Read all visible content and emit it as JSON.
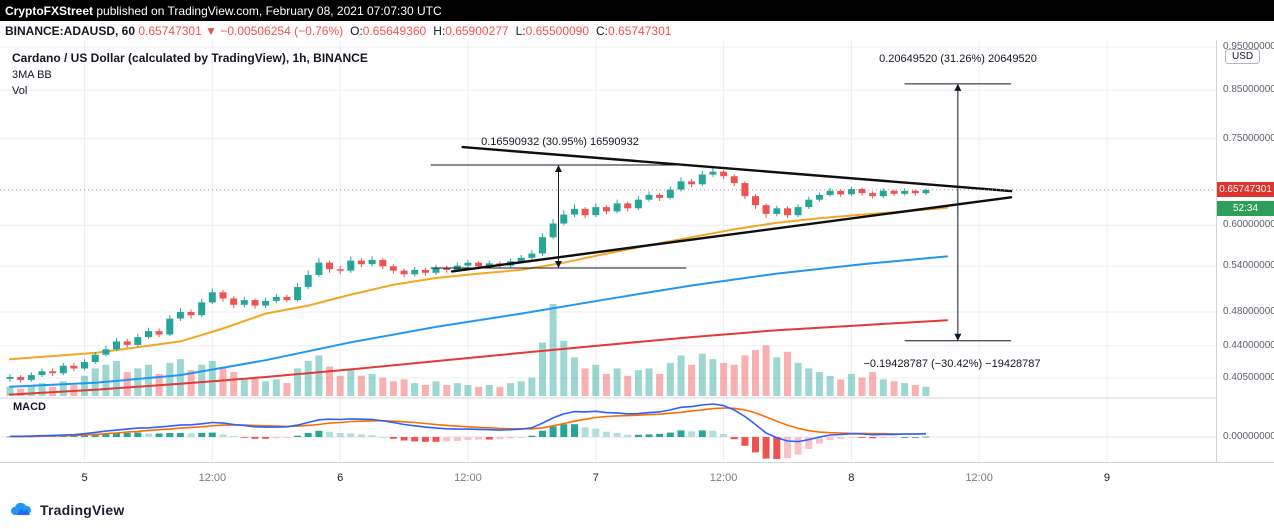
{
  "header": {
    "publisher": "CryptoFXStreet",
    "rest": " published on TradingView.com, February 08, 2021 07:07:30 UTC"
  },
  "symbol_bar": {
    "symbol": "BINANCE:ADAUSD, 60",
    "last": "0.65747301",
    "direction": "▼",
    "change": "−0.00506254 (−0.76%)",
    "o_label": "O:",
    "o": "0.65649360",
    "h_label": "H:",
    "h": "0.65900277",
    "l_label": "L:",
    "l": "0.65500090",
    "c_label": "C:",
    "c": "0.65747301"
  },
  "legend": {
    "title": "Cardano / US Dollar (calculated by TradingView), 1h, BINANCE",
    "indicators": "3MA BB",
    "volume": "Vol",
    "macd": "MACD"
  },
  "annotations": {
    "triangle_range": "0.16590932 (30.95%) 16590932",
    "up_range": "0.20649520 (31.26%) 20649520",
    "down_range": "−0.19428787 (−30.42%) −19428787"
  },
  "price_axis": {
    "currency": "USD",
    "last_price_tag": "0.65747301",
    "countdown": "52:34",
    "macd_zero": "0.00000000"
  },
  "footer": {
    "brand": "TradingView"
  },
  "colors": {
    "up": "#26a69a",
    "down": "#ef5350",
    "ma_fast": "#f5a623",
    "ma_mid": "#2196f3",
    "ma_slow": "#e53935",
    "macd_line": "#2962ff",
    "signal_line": "#ff6d00",
    "price_tag_bg": "#e0342f",
    "countdown_bg": "#2e9e5b"
  },
  "chart_data": {
    "type": "candlestick",
    "title": "Cardano / US Dollar (calculated by TradingView), 1h, BINANCE",
    "exchange": "BINANCE",
    "interval": "1h",
    "scale": "log",
    "last_price": 0.65747301,
    "price_ticks": [
      "0.95000000",
      "0.85000000",
      "0.75000000",
      "0.60000000",
      "0.54000000",
      "0.48000000",
      "0.44000000",
      "0.40500000"
    ],
    "time_ticks": [
      {
        "label": "5",
        "idx": 7
      },
      {
        "label": "12:00",
        "idx": 19
      },
      {
        "label": "6",
        "idx": 31
      },
      {
        "label": "12:00",
        "idx": 43
      },
      {
        "label": "7",
        "idx": 55
      },
      {
        "label": "12:00",
        "idx": 67
      },
      {
        "label": "8",
        "idx": 79
      },
      {
        "label": "12:00",
        "idx": 91
      },
      {
        "label": "9",
        "idx": 103
      }
    ],
    "candles": [
      [
        0.404,
        0.409,
        0.401,
        0.406
      ],
      [
        0.406,
        0.408,
        0.4,
        0.403
      ],
      [
        0.403,
        0.411,
        0.401,
        0.408
      ],
      [
        0.408,
        0.415,
        0.406,
        0.412
      ],
      [
        0.412,
        0.415,
        0.407,
        0.41
      ],
      [
        0.41,
        0.421,
        0.408,
        0.418
      ],
      [
        0.418,
        0.421,
        0.412,
        0.415
      ],
      [
        0.415,
        0.425,
        0.413,
        0.422
      ],
      [
        0.422,
        0.433,
        0.42,
        0.43
      ],
      [
        0.43,
        0.44,
        0.428,
        0.436
      ],
      [
        0.436,
        0.449,
        0.434,
        0.445
      ],
      [
        0.445,
        0.448,
        0.438,
        0.441
      ],
      [
        0.441,
        0.454,
        0.439,
        0.45
      ],
      [
        0.45,
        0.461,
        0.448,
        0.457
      ],
      [
        0.457,
        0.46,
        0.45,
        0.453
      ],
      [
        0.453,
        0.476,
        0.451,
        0.472
      ],
      [
        0.472,
        0.485,
        0.469,
        0.48
      ],
      [
        0.48,
        0.483,
        0.472,
        0.476
      ],
      [
        0.476,
        0.497,
        0.474,
        0.492
      ],
      [
        0.492,
        0.51,
        0.49,
        0.505
      ],
      [
        0.505,
        0.508,
        0.493,
        0.497
      ],
      [
        0.497,
        0.5,
        0.485,
        0.489
      ],
      [
        0.489,
        0.499,
        0.486,
        0.495
      ],
      [
        0.495,
        0.497,
        0.484,
        0.488
      ],
      [
        0.488,
        0.498,
        0.485,
        0.494
      ],
      [
        0.494,
        0.503,
        0.491,
        0.499
      ],
      [
        0.499,
        0.502,
        0.492,
        0.495
      ],
      [
        0.495,
        0.517,
        0.493,
        0.512
      ],
      [
        0.512,
        0.534,
        0.509,
        0.528
      ],
      [
        0.528,
        0.552,
        0.525,
        0.545
      ],
      [
        0.545,
        0.548,
        0.531,
        0.536
      ],
      [
        0.536,
        0.541,
        0.529,
        0.534
      ],
      [
        0.534,
        0.554,
        0.531,
        0.548
      ],
      [
        0.548,
        0.551,
        0.539,
        0.543
      ],
      [
        0.543,
        0.554,
        0.54,
        0.549
      ],
      [
        0.549,
        0.552,
        0.536,
        0.54
      ],
      [
        0.54,
        0.543,
        0.53,
        0.534
      ],
      [
        0.534,
        0.537,
        0.525,
        0.529
      ],
      [
        0.529,
        0.539,
        0.526,
        0.535
      ],
      [
        0.535,
        0.538,
        0.527,
        0.531
      ],
      [
        0.531,
        0.542,
        0.528,
        0.538
      ],
      [
        0.538,
        0.541,
        0.531,
        0.535
      ],
      [
        0.535,
        0.545,
        0.532,
        0.541
      ],
      [
        0.541,
        0.549,
        0.538,
        0.545
      ],
      [
        0.545,
        0.547,
        0.536,
        0.54
      ],
      [
        0.54,
        0.548,
        0.537,
        0.544
      ],
      [
        0.544,
        0.547,
        0.538,
        0.541
      ],
      [
        0.541,
        0.551,
        0.538,
        0.547
      ],
      [
        0.547,
        0.556,
        0.544,
        0.552
      ],
      [
        0.552,
        0.563,
        0.549,
        0.558
      ],
      [
        0.558,
        0.588,
        0.555,
        0.582
      ],
      [
        0.582,
        0.61,
        0.579,
        0.603
      ],
      [
        0.603,
        0.624,
        0.6,
        0.617
      ],
      [
        0.617,
        0.633,
        0.613,
        0.626
      ],
      [
        0.626,
        0.629,
        0.611,
        0.616
      ],
      [
        0.616,
        0.635,
        0.613,
        0.629
      ],
      [
        0.629,
        0.632,
        0.617,
        0.622
      ],
      [
        0.622,
        0.641,
        0.619,
        0.635
      ],
      [
        0.635,
        0.638,
        0.622,
        0.627
      ],
      [
        0.627,
        0.647,
        0.624,
        0.641
      ],
      [
        0.641,
        0.655,
        0.638,
        0.649
      ],
      [
        0.649,
        0.652,
        0.639,
        0.644
      ],
      [
        0.644,
        0.664,
        0.641,
        0.658
      ],
      [
        0.658,
        0.679,
        0.655,
        0.672
      ],
      [
        0.672,
        0.676,
        0.662,
        0.667
      ],
      [
        0.667,
        0.691,
        0.664,
        0.684
      ],
      [
        0.684,
        0.695,
        0.68,
        0.689
      ],
      [
        0.689,
        0.692,
        0.676,
        0.681
      ],
      [
        0.681,
        0.684,
        0.664,
        0.669
      ],
      [
        0.669,
        0.672,
        0.642,
        0.647
      ],
      [
        0.647,
        0.65,
        0.626,
        0.632
      ],
      [
        0.632,
        0.635,
        0.612,
        0.618
      ],
      [
        0.618,
        0.631,
        0.614,
        0.627
      ],
      [
        0.627,
        0.63,
        0.611,
        0.616
      ],
      [
        0.616,
        0.633,
        0.613,
        0.629
      ],
      [
        0.629,
        0.646,
        0.626,
        0.641
      ],
      [
        0.641,
        0.653,
        0.638,
        0.649
      ],
      [
        0.649,
        0.661,
        0.646,
        0.656
      ],
      [
        0.656,
        0.658,
        0.646,
        0.65
      ],
      [
        0.65,
        0.663,
        0.647,
        0.659
      ],
      [
        0.659,
        0.661,
        0.648,
        0.652
      ],
      [
        0.652,
        0.655,
        0.643,
        0.647
      ],
      [
        0.647,
        0.66,
        0.644,
        0.656
      ],
      [
        0.656,
        0.658,
        0.647,
        0.651
      ],
      [
        0.651,
        0.66,
        0.648,
        0.656
      ],
      [
        0.656,
        0.658,
        0.648,
        0.652
      ],
      [
        0.652,
        0.66,
        0.649,
        0.6575
      ]
    ],
    "volume": [
      0.1,
      0.08,
      0.12,
      0.14,
      0.1,
      0.16,
      0.12,
      0.22,
      0.3,
      0.34,
      0.38,
      0.26,
      0.3,
      0.34,
      0.24,
      0.36,
      0.4,
      0.28,
      0.34,
      0.38,
      0.3,
      0.26,
      0.18,
      0.2,
      0.16,
      0.18,
      0.14,
      0.3,
      0.38,
      0.44,
      0.32,
      0.22,
      0.3,
      0.22,
      0.24,
      0.2,
      0.16,
      0.18,
      0.14,
      0.12,
      0.16,
      0.12,
      0.14,
      0.12,
      0.1,
      0.12,
      0.1,
      0.14,
      0.16,
      0.2,
      0.58,
      1.0,
      0.6,
      0.42,
      0.3,
      0.34,
      0.24,
      0.3,
      0.22,
      0.28,
      0.3,
      0.24,
      0.36,
      0.44,
      0.34,
      0.46,
      0.4,
      0.36,
      0.34,
      0.44,
      0.5,
      0.55,
      0.42,
      0.48,
      0.36,
      0.3,
      0.26,
      0.22,
      0.18,
      0.24,
      0.2,
      0.26,
      0.18,
      0.16,
      0.14,
      0.12,
      0.1
    ],
    "ma_fast_points": [
      [
        0,
        0.425
      ],
      [
        8,
        0.432
      ],
      [
        16,
        0.445
      ],
      [
        20,
        0.46
      ],
      [
        24,
        0.478
      ],
      [
        28,
        0.488
      ],
      [
        32,
        0.502
      ],
      [
        36,
        0.515
      ],
      [
        40,
        0.524
      ],
      [
        44,
        0.53
      ],
      [
        48,
        0.535
      ],
      [
        52,
        0.545
      ],
      [
        56,
        0.558
      ],
      [
        60,
        0.57
      ],
      [
        64,
        0.582
      ],
      [
        68,
        0.594
      ],
      [
        72,
        0.604
      ],
      [
        76,
        0.611
      ],
      [
        80,
        0.617
      ],
      [
        84,
        0.622
      ],
      [
        88,
        0.628
      ]
    ],
    "ma_mid_points": [
      [
        0,
        0.396
      ],
      [
        8,
        0.4
      ],
      [
        16,
        0.408
      ],
      [
        24,
        0.424
      ],
      [
        32,
        0.444
      ],
      [
        40,
        0.462
      ],
      [
        48,
        0.478
      ],
      [
        56,
        0.496
      ],
      [
        64,
        0.514
      ],
      [
        72,
        0.53
      ],
      [
        80,
        0.543
      ],
      [
        88,
        0.554
      ]
    ],
    "ma_slow_points": [
      [
        0,
        0.388
      ],
      [
        8,
        0.393
      ],
      [
        16,
        0.399
      ],
      [
        24,
        0.406
      ],
      [
        32,
        0.414
      ],
      [
        40,
        0.423
      ],
      [
        48,
        0.432
      ],
      [
        56,
        0.441
      ],
      [
        64,
        0.45
      ],
      [
        72,
        0.458
      ],
      [
        80,
        0.464
      ],
      [
        88,
        0.47
      ]
    ],
    "macd": [
      0.02,
      0.02,
      0.03,
      0.04,
      0.05,
      0.06,
      0.07,
      0.1,
      0.14,
      0.18,
      0.21,
      0.24,
      0.27,
      0.28,
      0.3,
      0.33,
      0.36,
      0.37,
      0.4,
      0.44,
      0.42,
      0.38,
      0.35,
      0.31,
      0.3,
      0.3,
      0.31,
      0.36,
      0.44,
      0.52,
      0.54,
      0.53,
      0.55,
      0.54,
      0.53,
      0.49,
      0.44,
      0.38,
      0.34,
      0.3,
      0.27,
      0.25,
      0.24,
      0.24,
      0.23,
      0.22,
      0.21,
      0.22,
      0.24,
      0.28,
      0.42,
      0.58,
      0.7,
      0.77,
      0.76,
      0.78,
      0.74,
      0.73,
      0.7,
      0.71,
      0.74,
      0.76,
      0.82,
      0.9,
      0.92,
      0.97,
      1.0,
      0.95,
      0.82,
      0.62,
      0.38,
      0.12,
      -0.02,
      -0.12,
      -0.14,
      -0.08,
      0.0,
      0.06,
      0.08,
      0.1,
      0.09,
      0.07,
      0.08,
      0.08,
      0.09,
      0.09,
      0.1
    ],
    "signal": [
      0.01,
      0.01,
      0.02,
      0.02,
      0.03,
      0.04,
      0.05,
      0.06,
      0.08,
      0.1,
      0.12,
      0.15,
      0.17,
      0.2,
      0.22,
      0.24,
      0.27,
      0.29,
      0.31,
      0.34,
      0.36,
      0.36,
      0.36,
      0.35,
      0.34,
      0.33,
      0.32,
      0.33,
      0.35,
      0.38,
      0.42,
      0.44,
      0.47,
      0.48,
      0.49,
      0.49,
      0.48,
      0.46,
      0.44,
      0.41,
      0.38,
      0.35,
      0.33,
      0.31,
      0.29,
      0.28,
      0.26,
      0.25,
      0.25,
      0.25,
      0.28,
      0.34,
      0.41,
      0.48,
      0.54,
      0.59,
      0.62,
      0.64,
      0.65,
      0.66,
      0.68,
      0.69,
      0.72,
      0.75,
      0.79,
      0.82,
      0.86,
      0.88,
      0.87,
      0.82,
      0.73,
      0.61,
      0.48,
      0.36,
      0.26,
      0.19,
      0.15,
      0.13,
      0.12,
      0.11,
      0.11,
      0.1,
      0.1,
      0.09,
      0.09,
      0.09,
      0.09
    ],
    "hist": [
      0.02,
      0.02,
      0.02,
      0.04,
      0.04,
      0.04,
      0.04,
      0.08,
      0.12,
      0.16,
      0.18,
      0.18,
      0.2,
      0.16,
      0.16,
      0.18,
      0.18,
      0.16,
      0.18,
      0.2,
      0.12,
      0.04,
      -0.02,
      -0.08,
      -0.08,
      -0.06,
      -0.02,
      0.06,
      0.18,
      0.28,
      0.24,
      0.18,
      0.16,
      0.12,
      0.08,
      0.0,
      -0.08,
      -0.16,
      -0.2,
      -0.22,
      -0.22,
      -0.2,
      -0.18,
      -0.14,
      -0.12,
      -0.12,
      -0.1,
      -0.06,
      -0.02,
      0.06,
      0.28,
      0.48,
      0.58,
      0.58,
      0.44,
      0.38,
      0.24,
      0.18,
      0.1,
      0.1,
      0.12,
      0.14,
      0.2,
      0.3,
      0.26,
      0.3,
      0.28,
      0.14,
      -0.1,
      -0.4,
      -0.7,
      -0.98,
      -1.0,
      -0.96,
      -0.8,
      -0.54,
      -0.3,
      -0.14,
      -0.08,
      -0.02,
      -0.04,
      -0.06,
      -0.04,
      -0.02,
      0.0,
      0.0,
      0.02
    ],
    "trendlines": [
      {
        "from": [
          42.5,
          0.734
        ],
        "to": [
          94,
          0.6555
        ]
      },
      {
        "from": [
          41.5,
          0.533
        ],
        "to": [
          94,
          0.645
        ]
      }
    ],
    "measures": [
      {
        "name": "triangle-height",
        "cap_from_idx": 39.5,
        "cap_to_idx": 63.5,
        "arrow_idx": 51.5,
        "top_price": 0.701,
        "bottom_price": 0.5377
      },
      {
        "name": "breakout-targets",
        "cap_from_idx": 84,
        "cap_to_idx": 94,
        "arrow_idx": 89,
        "top_price": 0.864,
        "bottom_price": 0.4457
      }
    ]
  }
}
